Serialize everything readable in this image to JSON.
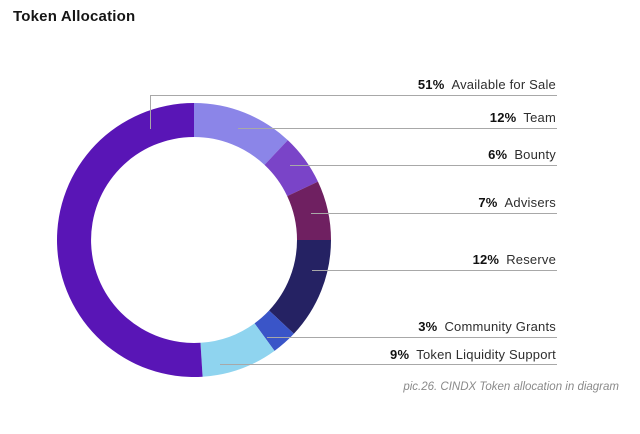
{
  "page": {
    "title": "Token Allocation",
    "caption": "pic.26. CINDX Token allocation in diagram",
    "background_color": "#ffffff"
  },
  "chart_data": {
    "type": "pie",
    "variant": "donut",
    "title": "Token Allocation",
    "legend_position": "right",
    "start_angle": "top",
    "direction": "clockwise",
    "leader_line_color": "#a8a8a8",
    "segments": [
      {
        "label": "Available for Sale",
        "value": 51,
        "pct": "51%",
        "color": "#5915b6"
      },
      {
        "label": "Team",
        "value": 12,
        "pct": "12%",
        "color": "#8b85e8"
      },
      {
        "label": "Bounty",
        "value": 6,
        "pct": "6%",
        "color": "#7a44c8"
      },
      {
        "label": "Advisers",
        "value": 7,
        "pct": "7%",
        "color": "#6f2061"
      },
      {
        "label": "Reserve",
        "value": 12,
        "pct": "12%",
        "color": "#252263"
      },
      {
        "label": "Community Grants",
        "value": 3,
        "pct": "3%",
        "color": "#3a55c8"
      },
      {
        "label": "Token Liquidity Support",
        "value": 9,
        "pct": "9%",
        "color": "#8fd4ef"
      }
    ],
    "draw_order_clockwise_from_top": [
      1,
      2,
      3,
      4,
      5,
      6,
      0
    ]
  }
}
